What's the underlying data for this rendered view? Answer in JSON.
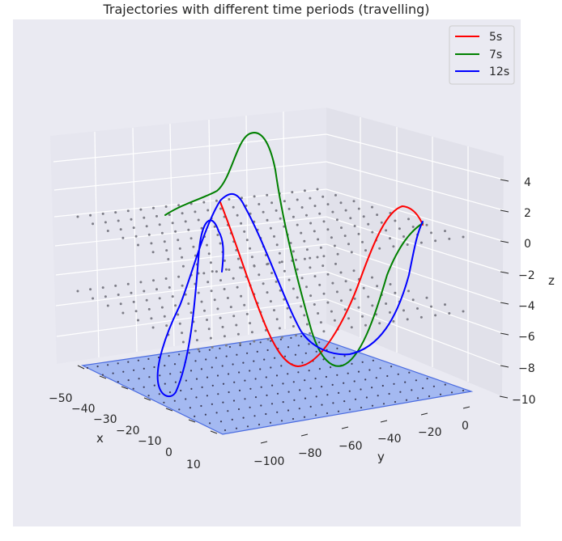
{
  "chart_data": {
    "type": "line",
    "projection": "3d",
    "title": "Trajectories with different time periods (travelling)",
    "xlabel": "x",
    "ylabel": "y",
    "zlabel": "z",
    "x_ticks": [
      "−50",
      "−40",
      "−30",
      "−20",
      "−10",
      "0",
      "10"
    ],
    "y_ticks": [
      "−100",
      "−80",
      "−60",
      "−40",
      "−20",
      "0"
    ],
    "z_ticks": [
      "4",
      "2",
      "0",
      "−2",
      "−4",
      "−6",
      "−8",
      "−10"
    ],
    "xlim": [
      -55,
      12
    ],
    "ylim": [
      -120,
      5
    ],
    "zlim": [
      -10,
      5
    ],
    "grid": true,
    "legend": "top-right",
    "colors": {
      "5s": "#ff0000",
      "7s": "#008000",
      "12s": "#0000ff",
      "plane": "#6a8ff0",
      "pane": "#eaeaf2"
    },
    "series": [
      {
        "name": "5s"
      },
      {
        "name": "7s"
      },
      {
        "name": "12s"
      }
    ]
  }
}
